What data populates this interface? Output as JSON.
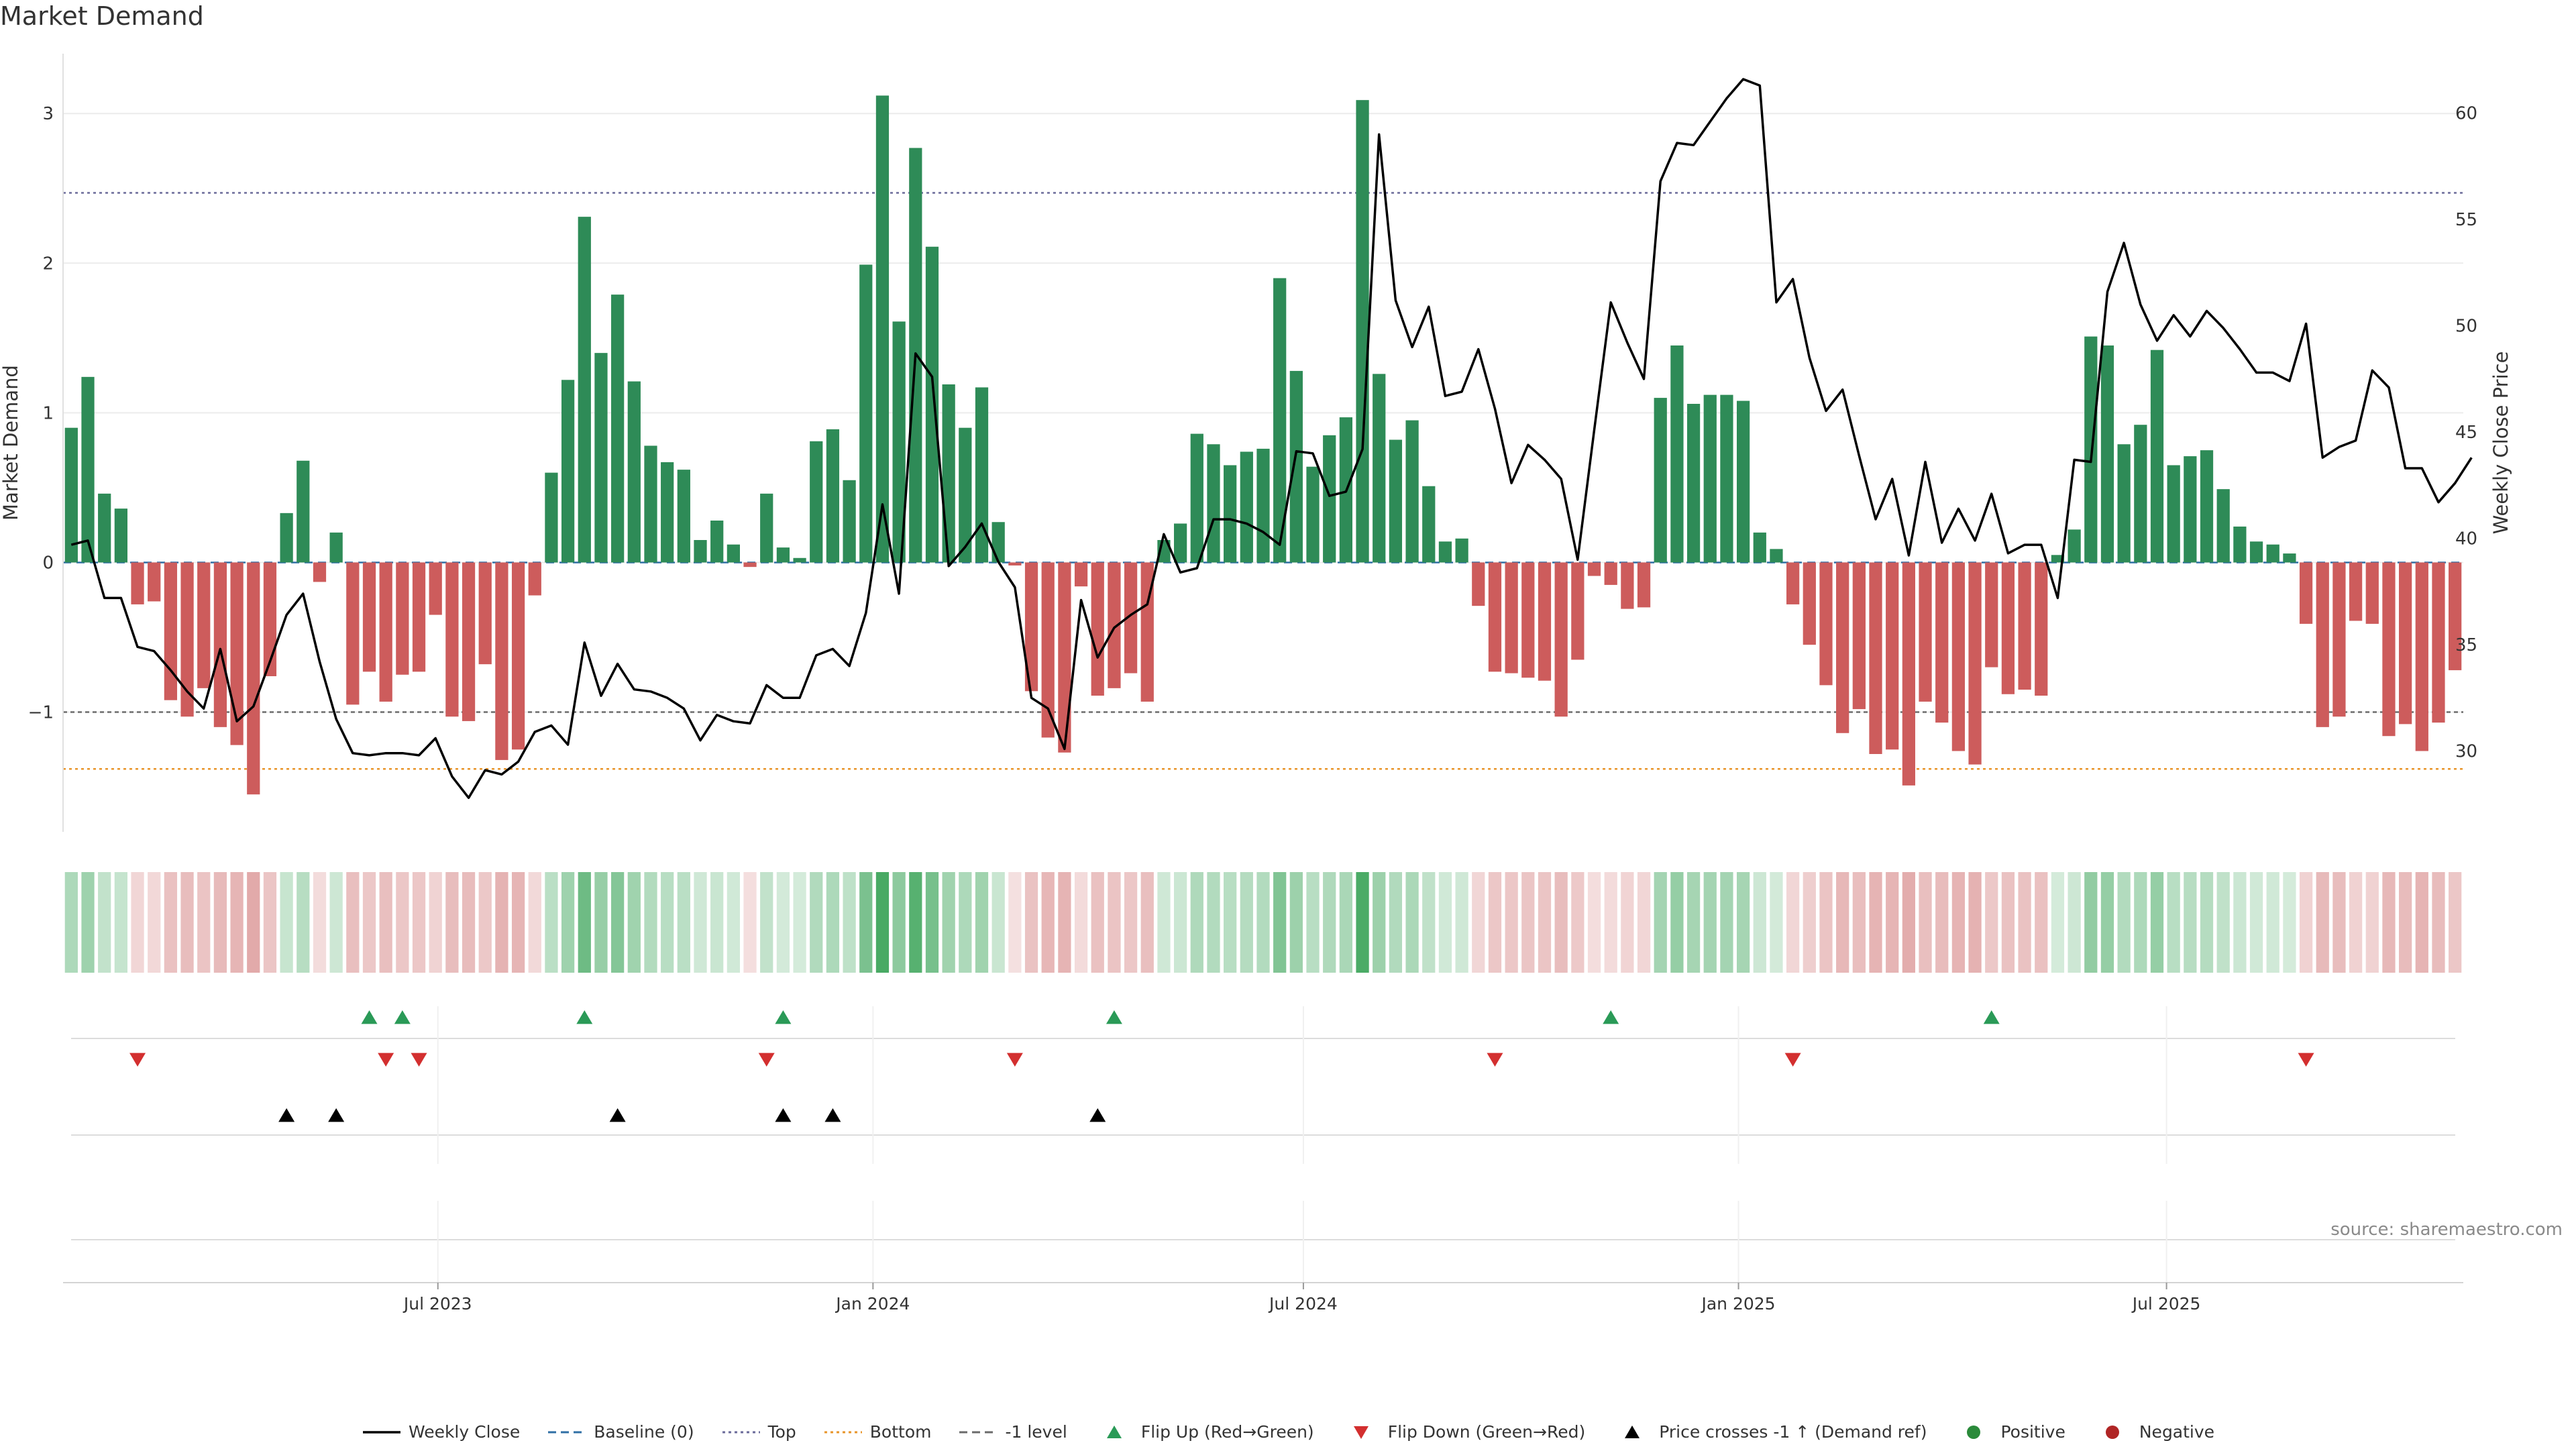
{
  "chart_data": {
    "type": "bar",
    "title": "Market Demand",
    "ylabel": "Market Demand",
    "y2label": "Weekly Close Price",
    "ylim": [
      -1.8,
      3.4
    ],
    "y2lim": [
      26.2,
      62.8
    ],
    "yticks": [
      "−1",
      "0",
      "1",
      "2",
      "3"
    ],
    "y2ticks": [
      "30",
      "35",
      "40",
      "45",
      "50",
      "55",
      "60"
    ],
    "reference_lines": {
      "baseline": 0,
      "top": 2.47,
      "minus_one": -1,
      "bottom": -1.38
    },
    "x_start": "2023-01-27",
    "week_days": 7,
    "xtick_labels": [
      "Jul 2023",
      "Jan 2024",
      "Jul 2024",
      "Jan 2025",
      "Jul 2025"
    ],
    "xtick_dates": [
      "2023-07-01",
      "2024-01-01",
      "2024-07-01",
      "2025-01-01",
      "2025-07-01"
    ],
    "demand": [
      0.9,
      1.24,
      0.46,
      0.36,
      -0.28,
      -0.26,
      -0.92,
      -1.03,
      -0.84,
      -1.1,
      -1.22,
      -1.55,
      -0.76,
      0.33,
      0.68,
      -0.13,
      0.2,
      -0.95,
      -0.73,
      -0.93,
      -0.75,
      -0.73,
      -0.35,
      -1.03,
      -1.06,
      -0.68,
      -1.32,
      -1.25,
      -0.22,
      0.6,
      1.22,
      2.31,
      1.4,
      1.79,
      1.21,
      0.78,
      0.67,
      0.62,
      0.15,
      0.28,
      0.12,
      -0.03,
      0.46,
      0.1,
      0.03,
      0.81,
      0.89,
      0.55,
      1.99,
      3.12,
      1.61,
      2.77,
      2.11,
      1.19,
      0.9,
      1.17,
      0.27,
      -0.02,
      -0.86,
      -1.17,
      -1.27,
      -0.16,
      -0.89,
      -0.84,
      -0.74,
      -0.93,
      0.15,
      0.26,
      0.86,
      0.79,
      0.65,
      0.74,
      0.76,
      1.9,
      1.28,
      0.64,
      0.85,
      0.97,
      3.09,
      1.26,
      0.82,
      0.95,
      0.51,
      0.14,
      0.16,
      -0.29,
      -0.73,
      -0.74,
      -0.77,
      -0.79,
      -1.03,
      -0.65,
      -0.09,
      -0.15,
      -0.31,
      -0.3,
      1.1,
      1.45,
      1.06,
      1.12,
      1.12,
      1.08,
      0.2,
      0.09,
      -0.28,
      -0.55,
      -0.82,
      -1.14,
      -0.98,
      -1.28,
      -1.25,
      -1.49,
      -0.93,
      -1.07,
      -1.26,
      -1.35,
      -0.7,
      -0.88,
      -0.85,
      -0.89,
      0.05,
      0.22,
      1.51,
      1.45,
      0.79,
      0.92,
      1.42,
      0.65,
      0.71,
      0.75,
      0.49,
      0.24,
      0.14,
      0.12,
      0.06,
      -0.41,
      -1.1,
      -1.03,
      -0.39,
      -0.41,
      -1.16,
      -1.08,
      -1.26,
      -1.07,
      -0.72
    ],
    "close": [
      39.7,
      39.9,
      37.2,
      37.2,
      34.9,
      34.7,
      33.8,
      32.8,
      32,
      34.8,
      31.4,
      32.1,
      34.2,
      36.4,
      37.4,
      34.2,
      31.5,
      29.9,
      29.8,
      29.9,
      29.9,
      29.8,
      30.6,
      28.8,
      27.8,
      29.1,
      28.9,
      29.5,
      30.9,
      31.2,
      30.3,
      35.1,
      32.6,
      34.1,
      32.9,
      32.8,
      32.5,
      32,
      30.5,
      31.7,
      31.4,
      31.3,
      33.1,
      32.5,
      32.5,
      34.5,
      34.8,
      34,
      36.5,
      41.6,
      37.4,
      48.7,
      47.6,
      38.7,
      39.6,
      40.7,
      38.9,
      37.7,
      32.5,
      32,
      30.1,
      37.1,
      34.4,
      35.8,
      36.4,
      36.9,
      40.2,
      38.4,
      38.6,
      40.9,
      40.9,
      40.7,
      40.3,
      39.7,
      44.1,
      44,
      42,
      42.2,
      44.2,
      59,
      51.2,
      49,
      50.9,
      46.7,
      46.9,
      48.9,
      46.1,
      42.6,
      44.4,
      43.7,
      42.8,
      39,
      45.1,
      51.1,
      49.2,
      47.5,
      56.8,
      58.6,
      58.5,
      59.6,
      60.7,
      61.6,
      61.3,
      51.1,
      52.2,
      48.5,
      46,
      47,
      43.9,
      40.9,
      42.8,
      39.2,
      43.6,
      39.8,
      41.4,
      39.9,
      42.1,
      39.3,
      39.7,
      39.7,
      37.2,
      43.7,
      43.6,
      51.6,
      53.9,
      51,
      49.3,
      50.5,
      49.5,
      50.7,
      49.9,
      48.9,
      47.8,
      47.8,
      47.4,
      50.1,
      43.8,
      44.3,
      44.6,
      47.9,
      47.1,
      43.3,
      43.3,
      41.7,
      42.6,
      43.8
    ],
    "flip_up": [
      "2023-06-02",
      "2023-06-16",
      "2023-09-01",
      "2023-11-24",
      "2024-04-12",
      "2024-11-08",
      "2025-04-18"
    ],
    "flip_down": [
      "2023-02-24",
      "2023-06-09",
      "2023-06-23",
      "2023-11-17",
      "2024-03-01",
      "2024-09-20",
      "2025-01-24",
      "2025-08-29"
    ],
    "price_cross_up": [
      "2023-04-28",
      "2023-05-19",
      "2023-09-15",
      "2023-11-24",
      "2023-12-15",
      "2024-04-05"
    ],
    "legend": [
      {
        "label": "Weekly Close",
        "style": "line",
        "color": "#000000"
      },
      {
        "label": "Baseline (0)",
        "style": "dash",
        "color": "#2f6fa5"
      },
      {
        "label": "Top",
        "style": "dot",
        "color": "#6b6b9a"
      },
      {
        "label": "Bottom",
        "style": "dot",
        "color": "#e8952a"
      },
      {
        "label": "-1 level",
        "style": "dash",
        "color": "#6b6b6b"
      },
      {
        "label": "Flip Up (Red→Green)",
        "style": "triangle-up",
        "color": "#2a9a57"
      },
      {
        "label": "Flip Down (Green→Red)",
        "style": "triangle-down",
        "color": "#d32f2f"
      },
      {
        "label": "Price crosses -1 ↑ (Demand ref)",
        "style": "triangle-up",
        "color": "#000000"
      },
      {
        "label": "Positive",
        "style": "circle",
        "color": "#2a8a3a"
      },
      {
        "label": "Negative",
        "style": "circle",
        "color": "#b02525"
      }
    ]
  },
  "colors": {
    "positive_bar": "#2e8b57",
    "negative_bar": "#cd5c5c",
    "price_line": "#000000"
  },
  "source": "source: sharemaestro.com"
}
